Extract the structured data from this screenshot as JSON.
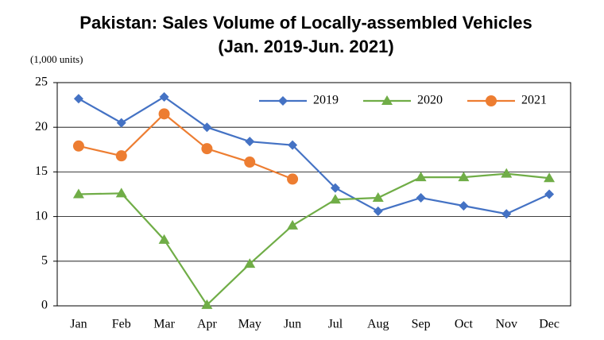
{
  "chart_data": {
    "type": "line",
    "title": "Pakistan: Sales Volume of Locally-assembled Vehicles",
    "subtitle": "(Jan. 2019-Jun. 2021)",
    "y_label": "(1,000 units)",
    "categories": [
      "Jan",
      "Feb",
      "Mar",
      "Apr",
      "May",
      "Jun",
      "Jul",
      "Aug",
      "Sep",
      "Oct",
      "Nov",
      "Dec"
    ],
    "series": [
      {
        "name": "2019",
        "color": "#4472c4",
        "marker": "diamond",
        "values": [
          23.2,
          20.5,
          23.4,
          20.0,
          18.4,
          18.0,
          13.2,
          10.6,
          12.1,
          11.2,
          10.3,
          12.5
        ]
      },
      {
        "name": "2020",
        "color": "#70ad47",
        "marker": "triangle",
        "values": [
          12.5,
          12.6,
          7.4,
          0.1,
          4.7,
          9.0,
          11.9,
          12.1,
          14.4,
          14.4,
          14.8,
          14.3
        ]
      },
      {
        "name": "2021",
        "color": "#ed7d31",
        "marker": "circle",
        "values": [
          17.9,
          16.8,
          21.5,
          17.6,
          16.1,
          14.2,
          null,
          null,
          null,
          null,
          null,
          null
        ]
      }
    ],
    "ylim": [
      0,
      25
    ],
    "yticks": [
      0,
      5,
      10,
      15,
      20,
      25
    ],
    "grid": true,
    "legend": "top"
  }
}
